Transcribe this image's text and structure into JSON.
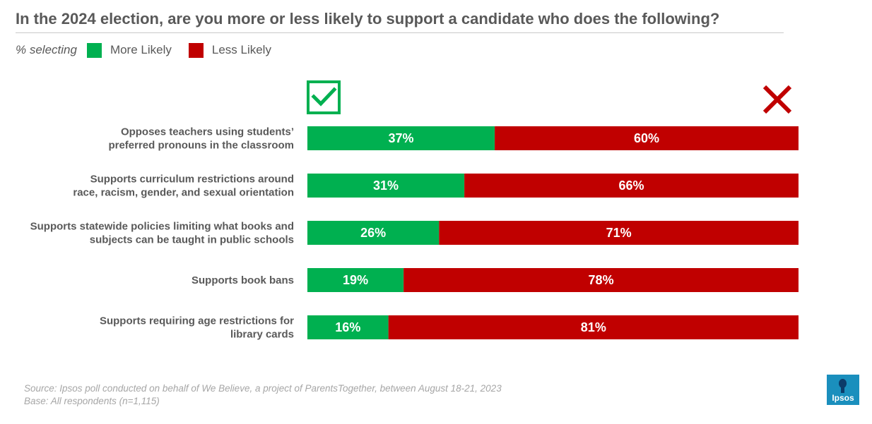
{
  "title": "In the 2024 election, are you more or less likely to support a candidate who does the following?",
  "legend": {
    "lead": "% selecting",
    "items": [
      {
        "label": "More Likely",
        "color": "#00b050"
      },
      {
        "label": "Less Likely",
        "color": "#c00000"
      }
    ]
  },
  "icons": {
    "more": "checkmark-icon",
    "less": "x-mark-icon"
  },
  "chart_data": {
    "type": "bar",
    "orientation": "horizontal",
    "stacked": true,
    "xlim": [
      0,
      100
    ],
    "unit": "%",
    "categories": [
      [
        "Opposes teachers using students’",
        "preferred pronouns in the classroom"
      ],
      [
        "Supports curriculum restrictions around",
        "race, racism, gender, and sexual orientation"
      ],
      [
        "Supports statewide policies limiting  what books and",
        "subjects can be taught in public schools"
      ],
      [
        "Supports book bans"
      ],
      [
        "Supports requiring age restrictions for",
        "library cards"
      ]
    ],
    "series": [
      {
        "name": "More Likely",
        "color": "#00b050",
        "values": [
          37,
          31,
          26,
          19,
          16
        ]
      },
      {
        "name": "Less Likely",
        "color": "#c00000",
        "values": [
          60,
          66,
          71,
          78,
          81
        ]
      }
    ]
  },
  "footnote": {
    "source": "Source: Ipsos poll conducted on behalf of We Believe, a project of ParentsTogether, between  August 18-21, 2023",
    "base": "Base: All respondents (n=1,115)"
  },
  "logo": {
    "text": "Ipsos"
  }
}
